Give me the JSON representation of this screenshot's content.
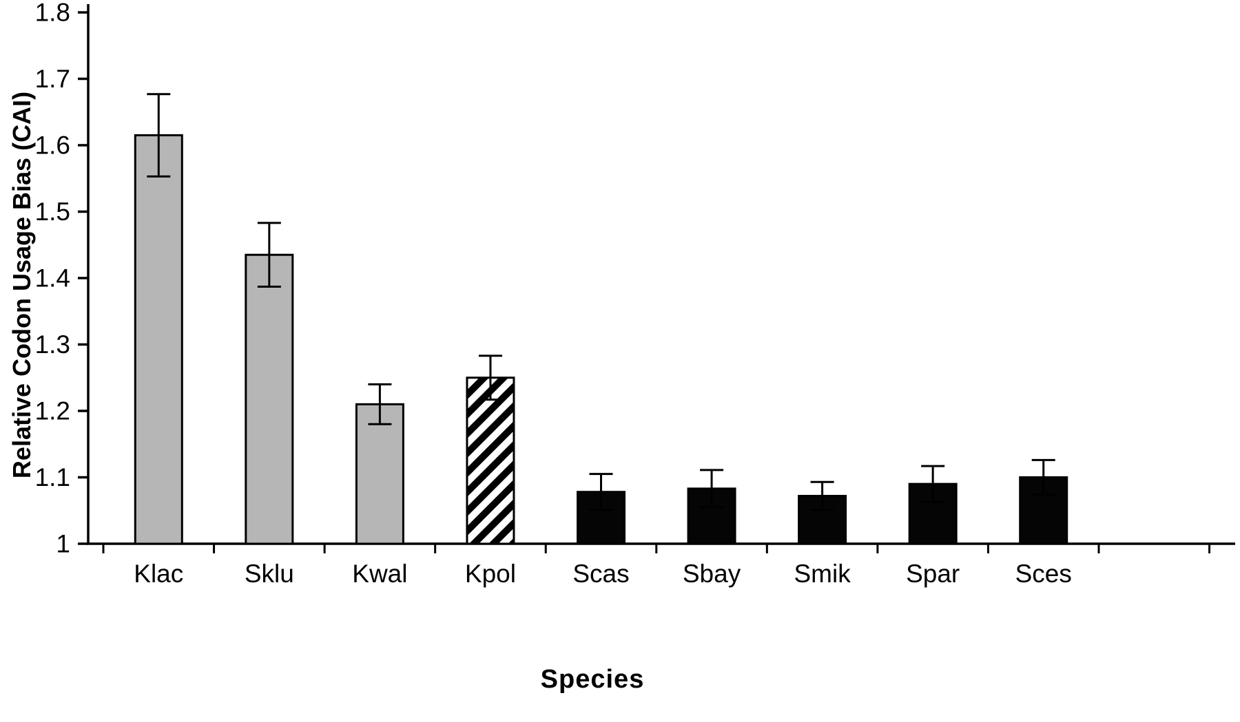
{
  "chart_data": {
    "type": "bar",
    "title": "",
    "xlabel": "Species",
    "ylabel": "Relative Codon Usage Bias (CAI)",
    "ylim": [
      1.0,
      1.8
    ],
    "yticks": [
      1.0,
      1.1,
      1.2,
      1.3,
      1.4,
      1.5,
      1.6,
      1.7,
      1.8
    ],
    "ytick_labels": [
      "1",
      "1.1",
      "1.2",
      "1.3",
      "1.4",
      "1.5",
      "1.6",
      "1.7",
      "1.8"
    ],
    "grid": false,
    "legend": "none",
    "categories": [
      "Klac",
      "Sklu",
      "Kwal",
      "Kpol",
      "Scas",
      "Sbay",
      "Smik",
      "Spar",
      "Sces"
    ],
    "series": [
      {
        "name": "Relative codon usage bias (CAI)",
        "values": [
          1.615,
          1.435,
          1.21,
          1.25,
          1.078,
          1.083,
          1.072,
          1.09,
          1.1
        ],
        "errors": [
          0.062,
          0.048,
          0.03,
          0.033,
          0.027,
          0.028,
          0.021,
          0.027,
          0.026
        ],
        "bar_styles": [
          "gray",
          "gray",
          "gray",
          "hatch",
          "black",
          "black",
          "black",
          "black",
          "black"
        ]
      }
    ],
    "colors": {
      "gray_fill": "#b6b6b6",
      "black_fill": "#050505",
      "hatch_stripe": "#000000",
      "hatch_bg": "#ffffff",
      "axis": "#000000",
      "background": "#ffffff"
    }
  }
}
